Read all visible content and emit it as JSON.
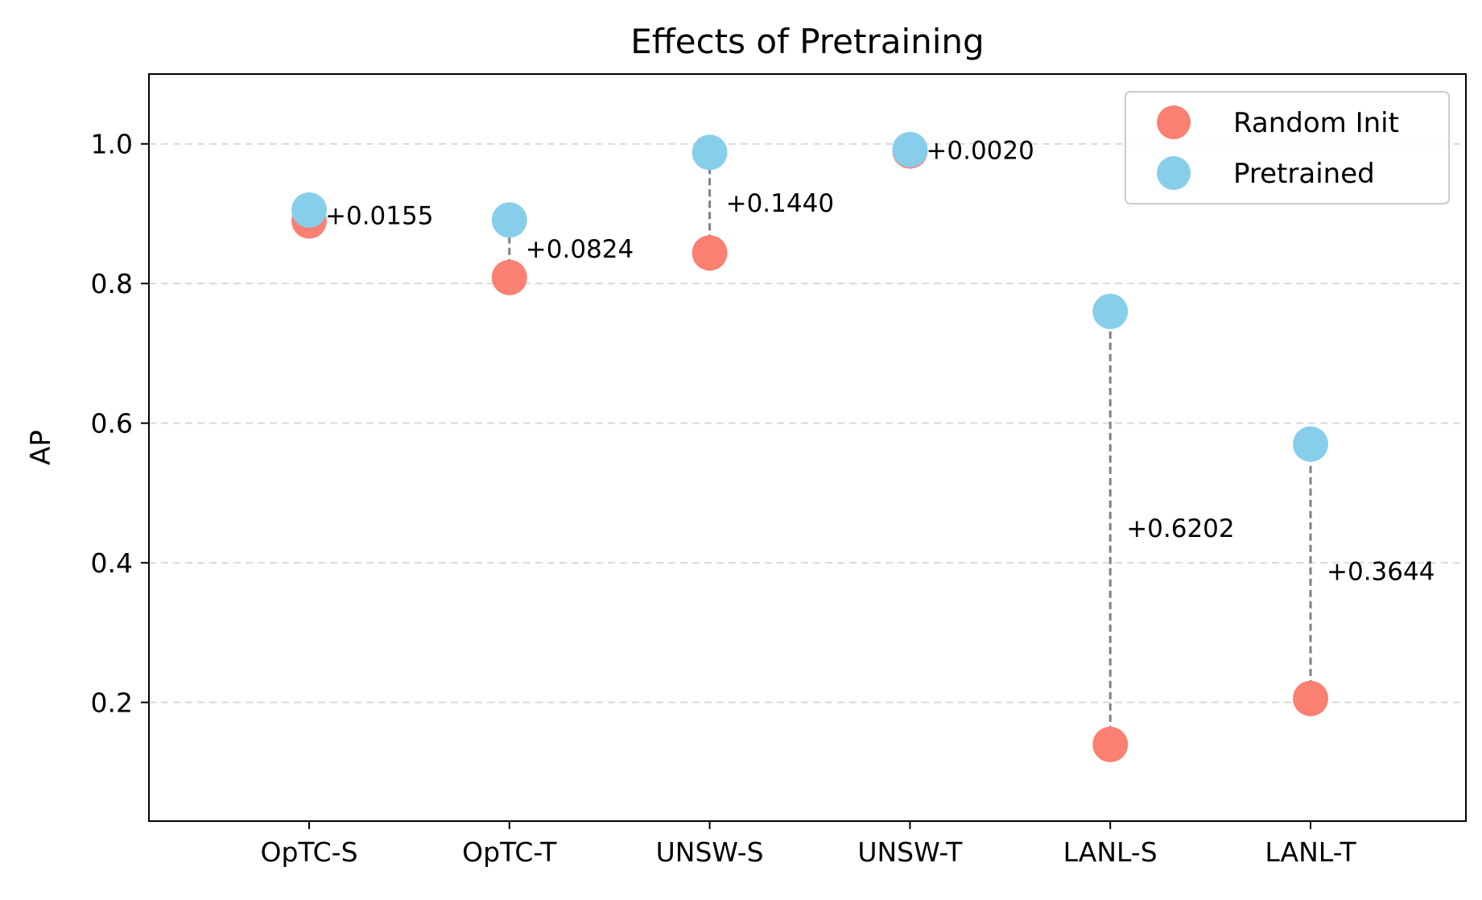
{
  "chart_data": {
    "type": "scatter",
    "title": "Effects of Pretraining",
    "xlabel": "",
    "ylabel": "AP",
    "categories": [
      "OpTC-S",
      "OpTC-T",
      "UNSW-S",
      "UNSW-T",
      "LANL-S",
      "LANL-T"
    ],
    "series": [
      {
        "name": "Random Init",
        "color": "#fa8072",
        "values": [
          0.8897,
          0.8086,
          0.8438,
          0.9898,
          0.1398,
          0.2056
        ]
      },
      {
        "name": "Pretrained",
        "color": "#87ceeb",
        "values": [
          0.9052,
          0.891,
          0.9878,
          0.9918,
          0.76,
          0.57
        ]
      }
    ],
    "annotations": [
      "+0.0155",
      "+0.0824",
      "+0.1440",
      "+0.0020",
      "+0.6202",
      "+0.3644"
    ],
    "yticks": [
      "0.2",
      "0.4",
      "0.6",
      "0.8",
      "1.0"
    ],
    "ylim": [
      0.03,
      1.1
    ],
    "grid": "horizontal dashed",
    "legend_position": "top-right",
    "connector_color": "#808080"
  }
}
